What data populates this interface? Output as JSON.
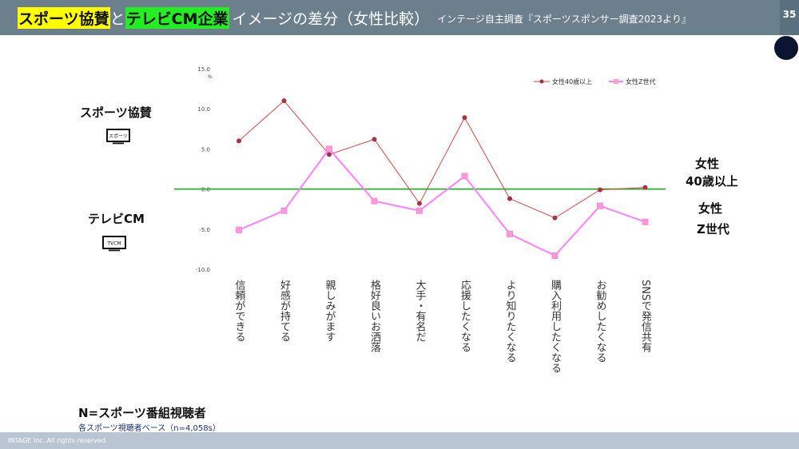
{
  "header": {
    "title_part1": "スポーツ協賛",
    "title_part2": "と",
    "title_part3": "テレビCM企業",
    "title_part4": "イメージの差分（女性比較）",
    "subtitle": "インテージ自主調査『スポーツスポンサー調査2023より』",
    "page_number": "35"
  },
  "left_labels": {
    "sports": "スポーツ協賛",
    "sports_icon_text": "スポーツ",
    "tvcm": "テレビCM",
    "tvcm_icon_text": "TVCM"
  },
  "right_labels": {
    "female40_line1": "女性",
    "female40_line2": "40歳以上",
    "femaleZ_line1": "女性",
    "femaleZ_line2": "Z世代"
  },
  "note": {
    "title": "N=スポーツ番組視聴者",
    "sub": "各スポーツ視聴者ベース（n=4,058s）"
  },
  "footer": {
    "copyright": "INTAGE Inc. All rights reserved."
  },
  "chart_data": {
    "type": "line",
    "unit": "%",
    "categories": [
      "信頼ができる",
      "好感が持てる",
      "親しみがます",
      "格好良いお洒落",
      "大手・有名だ",
      "応援したくなる",
      "より知りたくなる",
      "購入利用したくなる",
      "お勧めしたくなる",
      "SNSで発信共有"
    ],
    "series": [
      {
        "name": "女性40歳以上",
        "color": "#d14545",
        "marker_color": "#a8324a",
        "values": [
          6.0,
          11.0,
          4.3,
          6.2,
          -1.8,
          8.9,
          -1.2,
          -3.6,
          -0.1,
          0.2
        ]
      },
      {
        "name": "女性Z世代",
        "color": "#ff80ff",
        "marker_color": "#ff9ec4",
        "values": [
          -5.1,
          -2.7,
          5.0,
          -1.5,
          -2.7,
          1.6,
          -5.6,
          -8.3,
          -2.1,
          -4.1
        ]
      }
    ],
    "ylim": [
      -10.0,
      15.0
    ],
    "yticks": [
      "15.0",
      "10.0",
      "5.0",
      "0.0",
      "-5.0",
      "-10.0"
    ],
    "zero_line_color": "#2eaa3a",
    "legend_position": "top-right",
    "grid": false
  }
}
